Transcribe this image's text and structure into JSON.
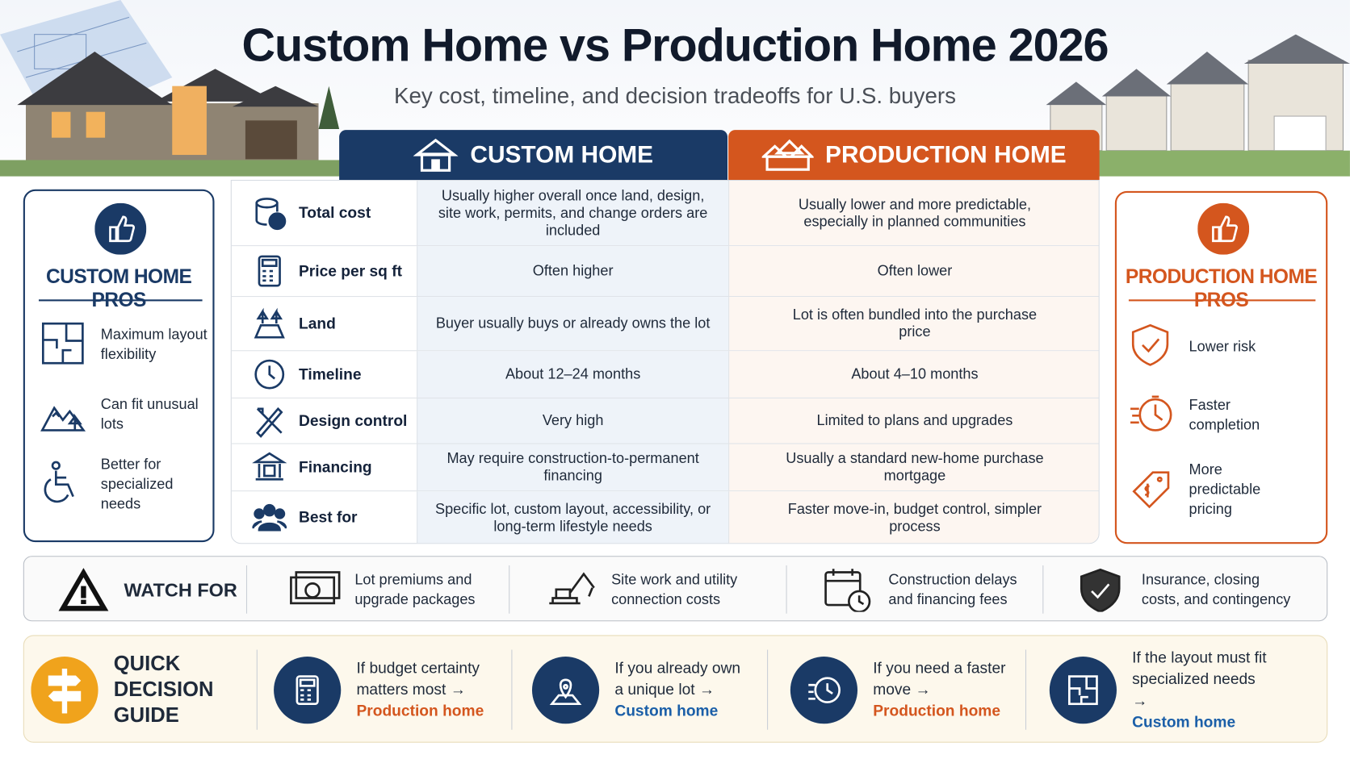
{
  "header": {
    "title": "Custom Home vs Production Home 2026",
    "subtitle": "Key cost, timeline, and decision tradeoffs for U.S. buyers"
  },
  "columns": {
    "custom": "CUSTOM HOME",
    "production": "PRODUCTION HOME"
  },
  "table": {
    "rows": [
      [
        "Total cost",
        "Usually higher overall once land, design, site work, permits, and change orders are included",
        "Usually lower and more predictable, especially in planned communities"
      ],
      [
        "Price per sq ft",
        "Often higher",
        "Often lower"
      ],
      [
        "Land",
        "Buyer usually buys or already owns the lot",
        "Lot is often bundled into the purchase price"
      ],
      [
        "Timeline",
        "About 12–24 months",
        "About 4–10 months"
      ],
      [
        "Design control",
        "Very high",
        "Limited to plans and upgrades"
      ],
      [
        "Financing",
        "May require construction-to-permanent financing",
        "Usually a standard new-home purchase mortgage"
      ],
      [
        "Best for",
        "Specific lot, custom layout, accessibility, or long-term lifestyle needs",
        "Faster move-in, budget control, simpler process"
      ]
    ]
  },
  "custom_pros": {
    "title": "CUSTOM HOME PROS",
    "items": [
      "Maximum layout flexibility",
      "Can fit unusual lots",
      "Better for specialized needs"
    ]
  },
  "production_pros": {
    "title": "PRODUCTION HOME PROS",
    "items": [
      "Lower risk",
      "Faster completion",
      "More predictable pricing"
    ]
  },
  "watch_for": {
    "title": "WATCH FOR",
    "items": [
      "Lot premiums and upgrade packages",
      "Site work and utility connection costs",
      "Construction delays and financing fees",
      "Insurance, closing costs, and contingency"
    ]
  },
  "decision_guide": {
    "title": "QUICK DECISION GUIDE",
    "items": [
      {
        "condition": "If budget certainty matters most →",
        "choice": "Production home"
      },
      {
        "condition": "If you already own a unique lot →",
        "choice": "Custom home"
      },
      {
        "condition": "If you need a faster move →",
        "choice": "Production home"
      },
      {
        "condition": "If the layout must fit specialized needs →",
        "choice": "Custom home"
      }
    ]
  }
}
